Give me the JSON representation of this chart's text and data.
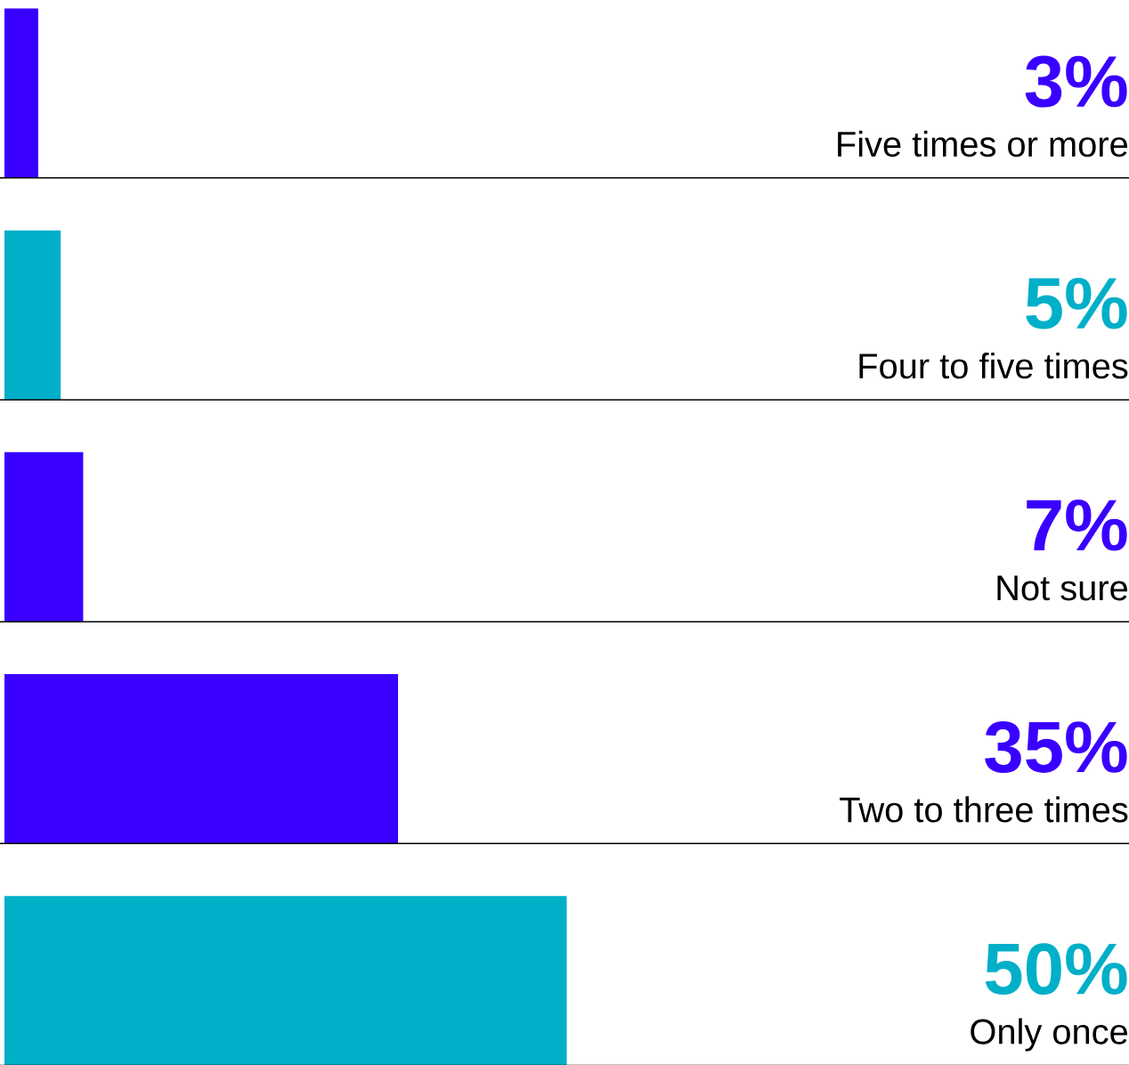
{
  "chart_data": {
    "type": "bar",
    "orientation": "horizontal",
    "categories": [
      "Five times or more",
      "Four to five times",
      "Not sure",
      "Two to three times",
      "Only once"
    ],
    "values": [
      3,
      5,
      7,
      35,
      50
    ],
    "value_labels": [
      "3%",
      "5%",
      "7%",
      "35%",
      "50%"
    ],
    "colors": [
      "#3a00ff",
      "#00afc8",
      "#3a00ff",
      "#3a00ff",
      "#00afc8"
    ],
    "xlim": [
      0,
      100
    ],
    "tick_labels": false
  }
}
